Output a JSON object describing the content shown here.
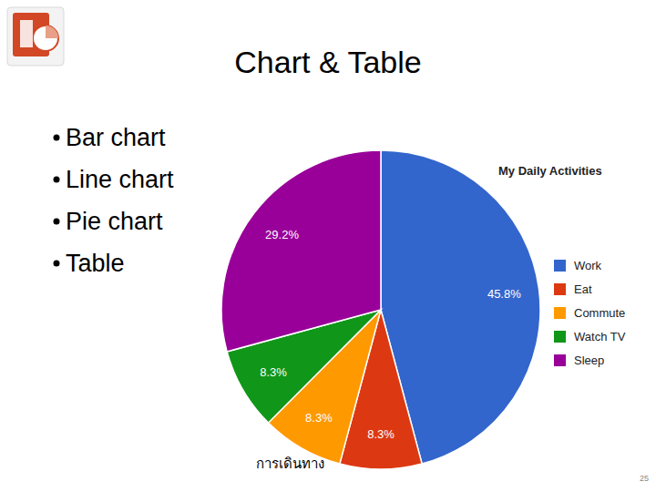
{
  "slide": {
    "title": "Chart & Table",
    "bullets": [
      "Bar chart",
      "Line chart",
      "Pie chart",
      "Table"
    ],
    "page_number": 25
  },
  "chart_data": {
    "type": "pie",
    "title": "My Daily Activities",
    "categories": [
      "Work",
      "Eat",
      "Commute",
      "Watch TV",
      "Sleep"
    ],
    "values": [
      45.8,
      8.3,
      8.3,
      8.3,
      29.2
    ],
    "value_labels": [
      "45.8%",
      "8.3%",
      "8.3%",
      "8.3%",
      "29.2%"
    ],
    "colors": [
      "#3366cc",
      "#dc3912",
      "#ff9900",
      "#109618",
      "#990099"
    ],
    "data_labels": true,
    "legend": "right",
    "annotation": "การเดินทาง"
  }
}
